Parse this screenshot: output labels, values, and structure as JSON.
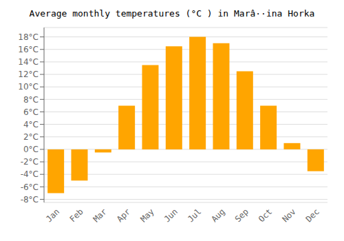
{
  "chart_data": {
    "type": "bar",
    "title": "Average monthly temperatures (°C ) in Marâ··ina Horka",
    "categories": [
      "Jan",
      "Feb",
      "Mar",
      "Apr",
      "May",
      "Jun",
      "Jul",
      "Aug",
      "Sep",
      "Oct",
      "Nov",
      "Dec"
    ],
    "values": [
      -7.0,
      -5.0,
      -0.5,
      7.0,
      13.5,
      16.5,
      18.0,
      17.0,
      12.5,
      7.0,
      1.0,
      -3.5
    ],
    "color": "#FFA500",
    "ylim": [
      -8.5,
      19.5
    ],
    "yticks": [
      {
        "value": -8,
        "label": "-8°C"
      },
      {
        "value": -6,
        "label": "-6°C"
      },
      {
        "value": -4,
        "label": "-4°C"
      },
      {
        "value": -2,
        "label": "-2°C"
      },
      {
        "value": 0,
        "label": "0°C"
      },
      {
        "value": 2,
        "label": "2°C"
      },
      {
        "value": 4,
        "label": "4°C"
      },
      {
        "value": 6,
        "label": "6°C"
      },
      {
        "value": 8,
        "label": "8°C"
      },
      {
        "value": 10,
        "label": "10°C"
      },
      {
        "value": 12,
        "label": "12°C"
      },
      {
        "value": 14,
        "label": "14°C"
      },
      {
        "value": 16,
        "label": "16°C"
      },
      {
        "value": 18,
        "label": "18°C"
      }
    ],
    "grid": true
  }
}
